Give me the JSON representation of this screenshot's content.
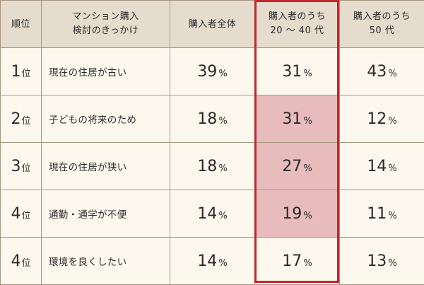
{
  "headers": {
    "rank": "順位",
    "reason_line1": "マンション購入",
    "reason_line2": "検討のきっかけ",
    "all": "購入者全体",
    "age_20_40_line1": "購入者のうち",
    "age_20_40_line2": "20 ～ 40 代",
    "age_50_line1": "購入者のうち",
    "age_50_line2": "50 代"
  },
  "rank_suffix": "位",
  "percent_suffix": "%",
  "rows": [
    {
      "rank": "1",
      "reason": "現在の住居が古い",
      "all": "39",
      "age_20_40": "31",
      "age_50": "43",
      "highlight": false
    },
    {
      "rank": "2",
      "reason": "子どもの将来のため",
      "all": "18",
      "age_20_40": "31",
      "age_50": "12",
      "highlight": true
    },
    {
      "rank": "3",
      "reason": "現在の住居が狭い",
      "all": "18",
      "age_20_40": "27",
      "age_50": "14",
      "highlight": true
    },
    {
      "rank": "4",
      "reason": "通勤・通学が不便",
      "all": "14",
      "age_20_40": "19",
      "age_50": "11",
      "highlight": true
    },
    {
      "rank": "4",
      "reason": "環境を良くしたい",
      "all": "14",
      "age_20_40": "17",
      "age_50": "13",
      "highlight": false
    }
  ],
  "colors": {
    "header_bg": "#e6dccd",
    "body_bg": "#fdf8ee",
    "highlight_bg": "#e8bcbc",
    "frame": "#c0262c",
    "border": "#a69580"
  }
}
